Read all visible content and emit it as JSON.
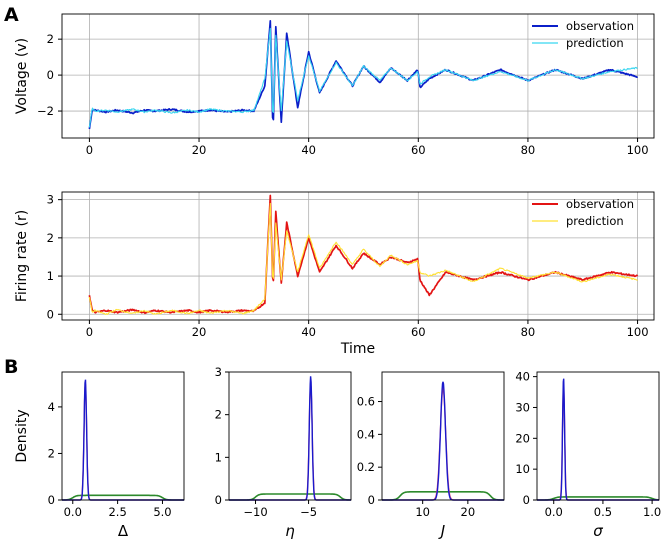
{
  "panel_labels": [
    "A",
    "B"
  ],
  "colors": {
    "observation_v": "#0b1fc9",
    "prediction_v": "#38d6f0",
    "observation_r": "#e31414",
    "prediction_r": "#ffe033",
    "kde_true": "#e8466a",
    "kde_post": "#1a1acc",
    "kde_prior": "#2c8a2c",
    "grid": "#b0b0b0"
  },
  "chart_data": [
    {
      "type": "line",
      "ylabel": "Voltage (v)",
      "xlabel": "",
      "xlim": [
        -5,
        103
      ],
      "ylim": [
        -3.5,
        3.4
      ],
      "xticks": [
        0,
        20,
        40,
        60,
        80,
        100
      ],
      "yticks": [
        -2,
        0,
        2
      ],
      "grid": true,
      "legend": "top-right",
      "series": [
        {
          "name": "observation",
          "color": "#0b1fc9",
          "x": [
            0,
            0.5,
            1,
            3,
            5,
            8,
            10,
            12,
            15,
            18,
            20,
            22,
            25,
            28,
            30,
            31,
            32,
            33,
            33.5,
            34,
            35,
            36,
            38,
            40,
            42,
            45,
            48,
            50,
            53,
            55,
            58,
            59.9,
            60.3,
            62,
            65,
            70,
            75,
            80,
            85,
            90,
            95,
            100
          ],
          "y": [
            -3.0,
            -1.9,
            -1.95,
            -2.05,
            -1.95,
            -2.1,
            -1.95,
            -2.0,
            -1.9,
            -2.05,
            -2.0,
            -1.95,
            -2.05,
            -1.95,
            -2.0,
            -1.3,
            -0.6,
            3.0,
            -3.3,
            2.7,
            -2.6,
            2.3,
            -1.8,
            1.3,
            -1.0,
            0.8,
            -0.6,
            0.5,
            -0.4,
            0.4,
            -0.3,
            0.3,
            -0.7,
            -0.2,
            0.3,
            -0.3,
            0.3,
            -0.3,
            0.3,
            -0.2,
            0.3,
            -0.1
          ]
        },
        {
          "name": "prediction",
          "color": "#38d6f0",
          "x": [
            0,
            0.5,
            1,
            3,
            5,
            8,
            10,
            12,
            15,
            18,
            20,
            22,
            25,
            28,
            30,
            31,
            32,
            33,
            33.5,
            34,
            35,
            36,
            38,
            40,
            42,
            45,
            48,
            50,
            53,
            55,
            58,
            59.9,
            60.3,
            62,
            65,
            70,
            75,
            80,
            85,
            90,
            95,
            100
          ],
          "y": [
            -2.9,
            -1.85,
            -2.0,
            -1.95,
            -2.05,
            -1.9,
            -2.05,
            -1.95,
            -2.1,
            -1.95,
            -2.05,
            -1.9,
            -2.0,
            -2.05,
            -1.95,
            -1.1,
            -0.2,
            2.6,
            -2.8,
            2.2,
            -2.0,
            1.9,
            -1.4,
            1.1,
            -0.9,
            0.7,
            -0.6,
            0.5,
            -0.3,
            0.4,
            -0.3,
            0.2,
            -0.5,
            -0.1,
            0.3,
            -0.3,
            0.2,
            -0.3,
            0.3,
            -0.2,
            0.2,
            0.4
          ]
        }
      ]
    },
    {
      "type": "line",
      "ylabel": "Firing rate (r)",
      "xlabel": "Time",
      "xlim": [
        -5,
        103
      ],
      "ylim": [
        -0.15,
        3.2
      ],
      "xticks": [
        0,
        20,
        40,
        60,
        80,
        100
      ],
      "yticks": [
        0,
        1,
        2,
        3
      ],
      "grid": true,
      "legend": "top-right",
      "series": [
        {
          "name": "observation",
          "color": "#e31414",
          "x": [
            0,
            0.5,
            1,
            3,
            5,
            8,
            10,
            12,
            15,
            18,
            20,
            22,
            25,
            28,
            30,
            32,
            33,
            33.5,
            34,
            35,
            36,
            38,
            40,
            42,
            45,
            48,
            50,
            53,
            55,
            58,
            59.9,
            60.3,
            62,
            65,
            70,
            75,
            80,
            85,
            90,
            95,
            100
          ],
          "y": [
            0.5,
            0.1,
            0.05,
            0.1,
            0.05,
            0.12,
            0.04,
            0.1,
            0.05,
            0.1,
            0.05,
            0.1,
            0.06,
            0.1,
            0.08,
            0.3,
            3.1,
            0.6,
            2.7,
            0.8,
            2.4,
            1.0,
            2.0,
            1.1,
            1.8,
            1.2,
            1.6,
            1.3,
            1.5,
            1.35,
            1.45,
            0.9,
            0.5,
            1.1,
            0.9,
            1.1,
            0.9,
            1.1,
            0.9,
            1.1,
            1.0
          ]
        },
        {
          "name": "prediction",
          "color": "#ffe033",
          "x": [
            0,
            0.5,
            1,
            3,
            5,
            8,
            10,
            12,
            15,
            18,
            20,
            22,
            25,
            28,
            30,
            32,
            33,
            33.5,
            34,
            35,
            36,
            38,
            40,
            42,
            45,
            48,
            50,
            53,
            55,
            58,
            59.9,
            60.3,
            62,
            65,
            70,
            75,
            80,
            85,
            90,
            95,
            100
          ],
          "y": [
            0.45,
            0.05,
            0.1,
            0.0,
            0.12,
            0.02,
            0.1,
            0.0,
            0.1,
            0.02,
            0.1,
            0.03,
            0.1,
            0.02,
            0.1,
            0.4,
            2.9,
            0.7,
            2.4,
            0.9,
            2.2,
            1.1,
            2.1,
            1.2,
            1.9,
            1.3,
            1.7,
            1.25,
            1.55,
            1.3,
            1.4,
            1.1,
            1.0,
            1.15,
            0.85,
            1.2,
            0.95,
            1.1,
            0.85,
            1.05,
            0.9
          ]
        }
      ]
    },
    {
      "type": "area",
      "xlabel": "Δ",
      "ylabel": "Density",
      "xlim": [
        -0.6,
        6.2
      ],
      "ylim": [
        0,
        5.5
      ],
      "xticks": [
        0.0,
        2.5,
        5.0
      ],
      "xtick_labels": [
        "0.0",
        "2.5",
        "5.0"
      ],
      "yticks": [
        0,
        2,
        4
      ],
      "grid": false,
      "prior": {
        "low": 0.0,
        "high": 5.0,
        "height": 0.2
      },
      "posterior": {
        "mean": 0.7,
        "sd": 0.07,
        "peak": 5.2
      },
      "truth": {
        "mean": 0.7,
        "sd": 0.075,
        "peak": 5.0
      }
    },
    {
      "type": "area",
      "xlabel": "η",
      "ylabel": "",
      "xlim": [
        -12.5,
        -1.0
      ],
      "ylim": [
        0,
        3.0
      ],
      "xticks": [
        -10,
        -5
      ],
      "xtick_labels": [
        "−10",
        "−5"
      ],
      "yticks": [
        0,
        1,
        2,
        3
      ],
      "grid": false,
      "prior": {
        "low": -10.0,
        "high": -2.0,
        "height": 0.14
      },
      "posterior": {
        "mean": -4.8,
        "sd": 0.13,
        "peak": 2.9
      },
      "truth": {
        "mean": -4.8,
        "sd": 0.14,
        "peak": 2.75
      }
    },
    {
      "type": "area",
      "xlabel": "J",
      "ylabel": "",
      "xlim": [
        1,
        28
      ],
      "ylim": [
        0,
        0.78
      ],
      "xticks": [
        10,
        20
      ],
      "xtick_labels": [
        "10",
        "20"
      ],
      "yticks": [
        0.0,
        0.2,
        0.4,
        0.6
      ],
      "grid": false,
      "prior": {
        "low": 5.0,
        "high": 25.0,
        "height": 0.05
      },
      "posterior": {
        "mean": 14.5,
        "sd": 0.55,
        "peak": 0.72
      },
      "truth": {
        "mean": 14.5,
        "sd": 0.6,
        "peak": 0.68
      }
    },
    {
      "type": "area",
      "xlabel": "σ",
      "ylabel": "",
      "xlim": [
        -0.17,
        1.07
      ],
      "ylim": [
        0,
        41.5
      ],
      "xticks": [
        0.0,
        0.5,
        1.0
      ],
      "xtick_labels": [
        "0.0",
        "0.5",
        "1.0"
      ],
      "yticks": [
        0,
        10,
        20,
        30,
        40
      ],
      "grid": false,
      "prior": {
        "low": 0.0,
        "high": 1.0,
        "height": 1.0
      },
      "posterior": {
        "mean": 0.1,
        "sd": 0.01,
        "peak": 40
      },
      "truth": {
        "mean": 0.1,
        "sd": 0.011,
        "peak": 38
      }
    }
  ]
}
